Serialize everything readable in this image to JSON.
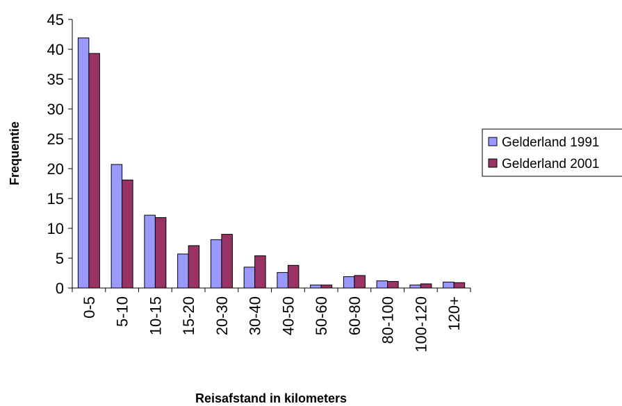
{
  "chart_data": {
    "type": "bar",
    "title": "",
    "xlabel": "Reisafstand in kilometers",
    "ylabel": "Frequentie",
    "ylim": [
      0,
      45
    ],
    "yticks": [
      0,
      5,
      10,
      15,
      20,
      25,
      30,
      35,
      40,
      45
    ],
    "grid": false,
    "legend_position": "right",
    "categories": [
      "0-5",
      "5-10",
      "10-15",
      "15-20",
      "20-30",
      "30-40",
      "40-50",
      "50-60",
      "60-80",
      "80-100",
      "100-120",
      "120+"
    ],
    "series": [
      {
        "name": "Gelderland 1991",
        "color": "#9999ff",
        "values": [
          41.9,
          20.7,
          12.2,
          5.7,
          8.1,
          3.5,
          2.6,
          0.5,
          1.9,
          1.2,
          0.5,
          1.0
        ]
      },
      {
        "name": "Gelderland 2001",
        "color": "#993366",
        "values": [
          39.3,
          18.1,
          11.8,
          7.1,
          9.0,
          5.4,
          3.8,
          0.5,
          2.1,
          1.1,
          0.7,
          0.9
        ]
      }
    ]
  }
}
